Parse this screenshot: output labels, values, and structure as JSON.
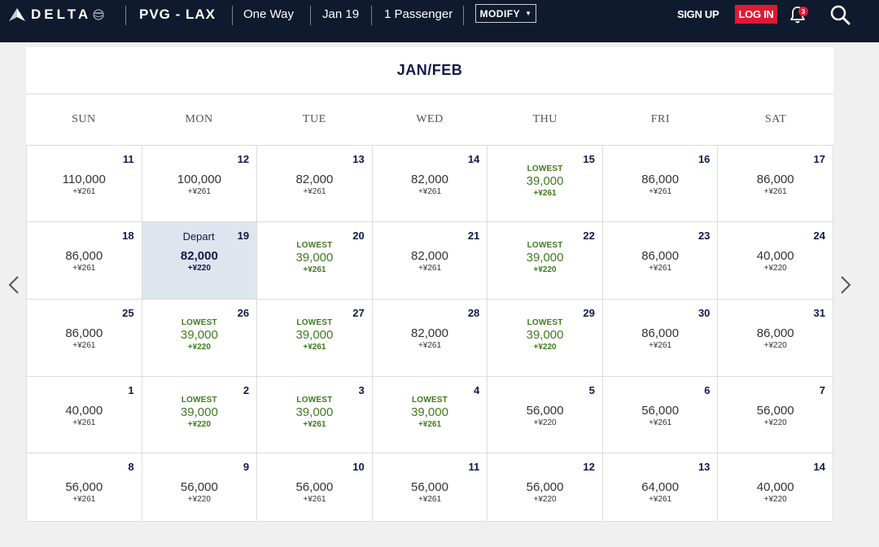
{
  "header": {
    "logo_text": "DELTA",
    "route": "PVG - LAX",
    "trip_type": "One Way",
    "date": "Jan 19",
    "passengers": "1 Passenger",
    "modify_label": "MODIFY",
    "signup_label": "SIGN UP",
    "login_label": "LOG IN",
    "notification_count": "3"
  },
  "colors": {
    "header_bg": "#0f1a2e",
    "accent_red": "#e01933",
    "lowest_green": "#3f7a1e",
    "selected_bg": "#dfe5ef",
    "navy_text": "#0f1a4a"
  },
  "calendar": {
    "title": "JAN/FEB",
    "weekdays": [
      "SUN",
      "MON",
      "TUE",
      "WED",
      "THU",
      "FRI",
      "SAT"
    ],
    "lowest_label": "LOWEST",
    "depart_label": "Depart",
    "days": [
      {
        "day": "11",
        "price": "110,000",
        "fee": "+¥261",
        "lowest": false
      },
      {
        "day": "12",
        "price": "100,000",
        "fee": "+¥261",
        "lowest": false
      },
      {
        "day": "13",
        "price": "82,000",
        "fee": "+¥261",
        "lowest": false
      },
      {
        "day": "14",
        "price": "82,000",
        "fee": "+¥261",
        "lowest": false
      },
      {
        "day": "15",
        "price": "39,000",
        "fee": "+¥261",
        "lowest": true
      },
      {
        "day": "16",
        "price": "86,000",
        "fee": "+¥261",
        "lowest": false
      },
      {
        "day": "17",
        "price": "86,000",
        "fee": "+¥261",
        "lowest": false
      },
      {
        "day": "18",
        "price": "86,000",
        "fee": "+¥261",
        "lowest": false
      },
      {
        "day": "19",
        "price": "82,000",
        "fee": "+¥220",
        "lowest": false,
        "selected": true
      },
      {
        "day": "20",
        "price": "39,000",
        "fee": "+¥261",
        "lowest": true
      },
      {
        "day": "21",
        "price": "82,000",
        "fee": "+¥261",
        "lowest": false
      },
      {
        "day": "22",
        "price": "39,000",
        "fee": "+¥220",
        "lowest": true
      },
      {
        "day": "23",
        "price": "86,000",
        "fee": "+¥261",
        "lowest": false
      },
      {
        "day": "24",
        "price": "40,000",
        "fee": "+¥220",
        "lowest": false
      },
      {
        "day": "25",
        "price": "86,000",
        "fee": "+¥261",
        "lowest": false
      },
      {
        "day": "26",
        "price": "39,000",
        "fee": "+¥220",
        "lowest": true
      },
      {
        "day": "27",
        "price": "39,000",
        "fee": "+¥261",
        "lowest": true
      },
      {
        "day": "28",
        "price": "82,000",
        "fee": "+¥261",
        "lowest": false
      },
      {
        "day": "29",
        "price": "39,000",
        "fee": "+¥220",
        "lowest": true
      },
      {
        "day": "30",
        "price": "86,000",
        "fee": "+¥261",
        "lowest": false
      },
      {
        "day": "31",
        "price": "86,000",
        "fee": "+¥220",
        "lowest": false
      },
      {
        "day": "1",
        "price": "40,000",
        "fee": "+¥261",
        "lowest": false
      },
      {
        "day": "2",
        "price": "39,000",
        "fee": "+¥220",
        "lowest": true
      },
      {
        "day": "3",
        "price": "39,000",
        "fee": "+¥261",
        "lowest": true
      },
      {
        "day": "4",
        "price": "39,000",
        "fee": "+¥261",
        "lowest": true
      },
      {
        "day": "5",
        "price": "56,000",
        "fee": "+¥220",
        "lowest": false
      },
      {
        "day": "6",
        "price": "56,000",
        "fee": "+¥261",
        "lowest": false
      },
      {
        "day": "7",
        "price": "56,000",
        "fee": "+¥220",
        "lowest": false
      },
      {
        "day": "8",
        "price": "56,000",
        "fee": "+¥261",
        "lowest": false
      },
      {
        "day": "9",
        "price": "56,000",
        "fee": "+¥220",
        "lowest": false
      },
      {
        "day": "10",
        "price": "56,000",
        "fee": "+¥261",
        "lowest": false
      },
      {
        "day": "11",
        "price": "56,000",
        "fee": "+¥261",
        "lowest": false
      },
      {
        "day": "12",
        "price": "56,000",
        "fee": "+¥220",
        "lowest": false
      },
      {
        "day": "13",
        "price": "64,000",
        "fee": "+¥261",
        "lowest": false
      },
      {
        "day": "14",
        "price": "40,000",
        "fee": "+¥220",
        "lowest": false
      }
    ]
  }
}
